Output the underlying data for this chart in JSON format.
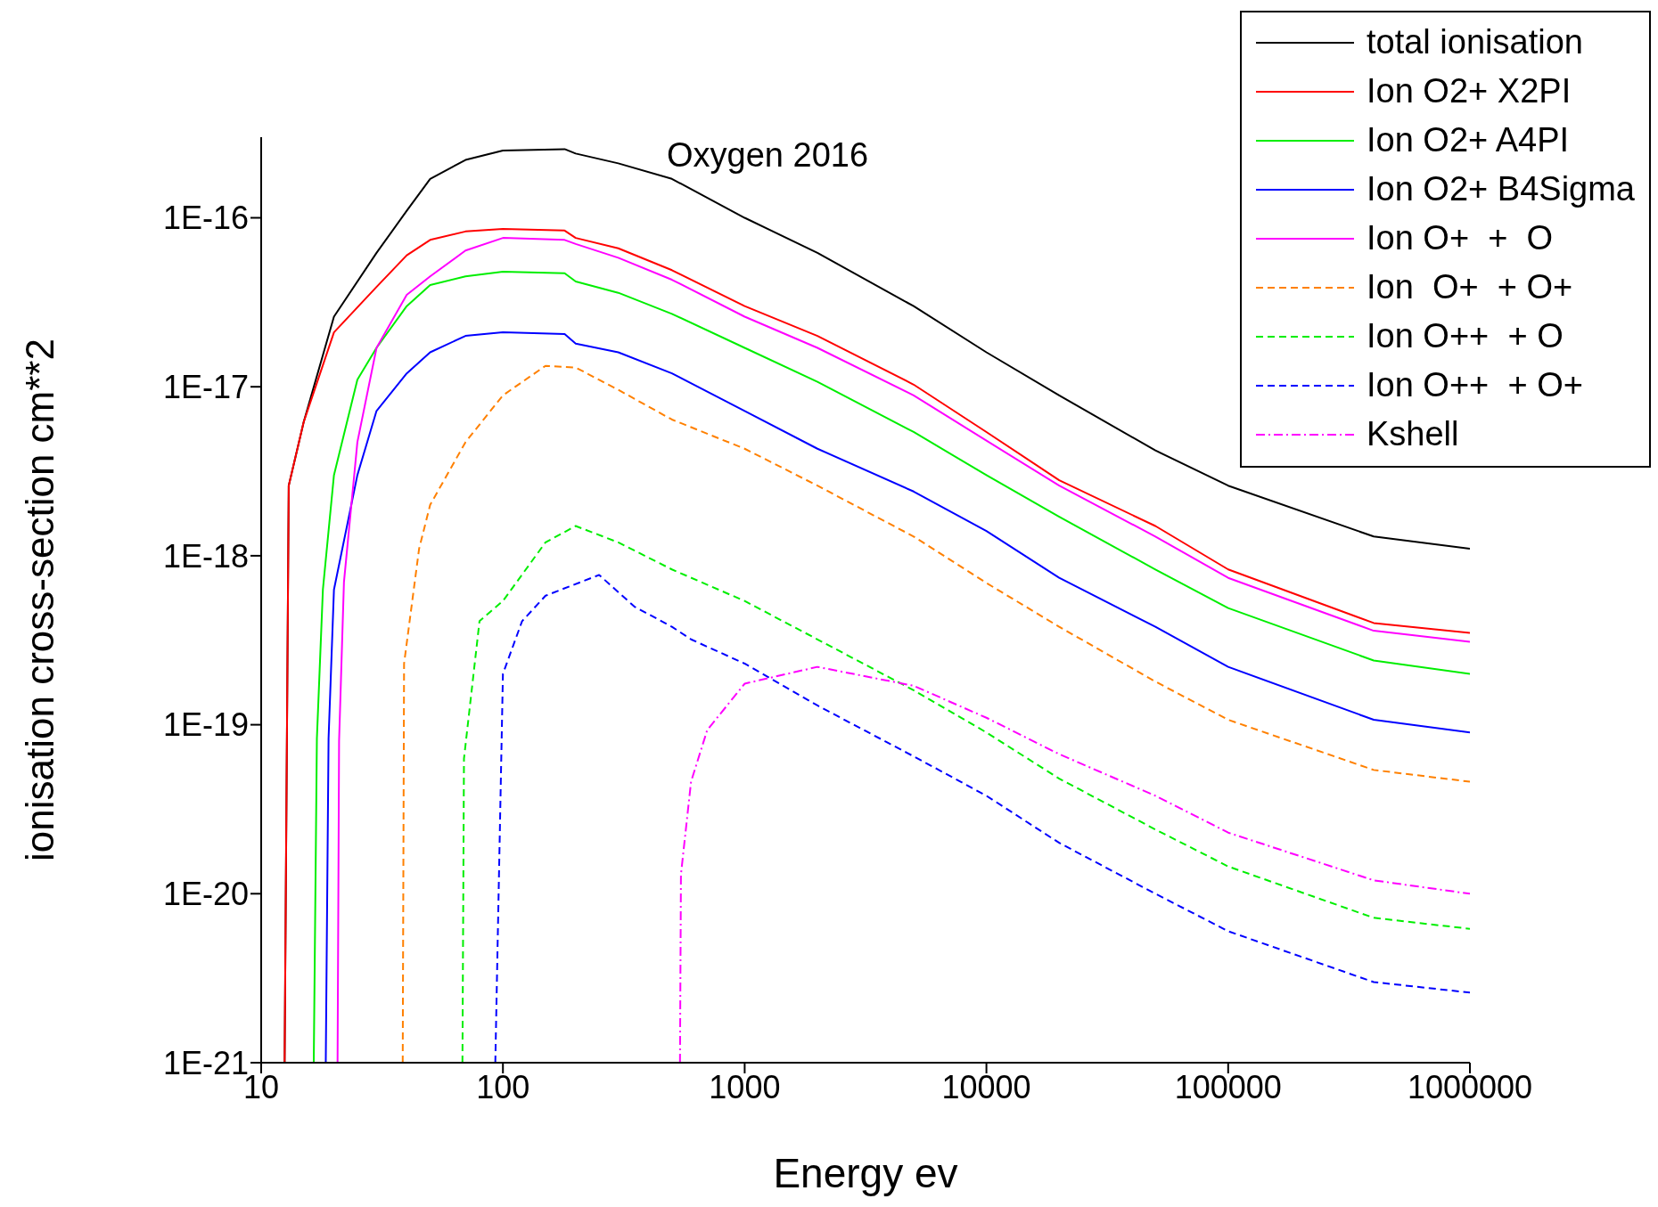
{
  "chart_data": {
    "type": "line",
    "title": "Oxygen 2016",
    "xlabel": "Energy  ev",
    "ylabel": "ionisation cross-section  cm**2",
    "log": "xy",
    "legend": "top right",
    "marker": "none",
    "xlim": [
      10,
      1000000
    ],
    "xticks": [
      10,
      100,
      1000,
      10000,
      100000,
      1000000
    ],
    "ylim": [
      1e-21,
      3e-16
    ],
    "yticks": [
      {
        "value": 1e-21,
        "label": "1E-21"
      },
      {
        "value": 1e-20,
        "label": "1E-20"
      },
      {
        "value": 1e-19,
        "label": "1E-19"
      },
      {
        "value": 1e-18,
        "label": "1E-18"
      },
      {
        "value": 1e-17,
        "label": "1E-17"
      },
      {
        "value": 1e-16,
        "label": "1E-16"
      }
    ],
    "series": [
      {
        "name": "total ionisation",
        "color": "#000000",
        "line_style": "solid",
        "x": [
          12.5,
          13,
          15,
          20,
          30,
          40,
          50,
          70,
          100,
          180,
          200,
          300,
          500,
          1000,
          2000,
          5000,
          10000,
          20000,
          50000,
          100000,
          400000,
          1000000
        ],
        "values": [
          1e-21,
          2.6e-18,
          6.2e-18,
          2.6e-17,
          6.2e-17,
          1.1e-16,
          1.7e-16,
          2.2e-16,
          2.5e-16,
          2.55e-16,
          2.4e-16,
          2.1e-16,
          1.7e-16,
          1e-16,
          6.2e-17,
          3e-17,
          1.6e-17,
          8.9e-18,
          4.2e-18,
          2.6e-18,
          1.3e-18,
          1.1e-18
        ]
      },
      {
        "name": "Ion O2+ X2PI",
        "color": "#ff0000",
        "line_style": "solid",
        "x": [
          12.5,
          13,
          15,
          20,
          30,
          40,
          50,
          70,
          100,
          180,
          200,
          300,
          500,
          1000,
          2000,
          5000,
          10000,
          20000,
          50000,
          100000,
          400000,
          1000000
        ],
        "values": [
          1e-21,
          2.6e-18,
          6.2e-18,
          2.1e-17,
          3.9e-17,
          6e-17,
          7.4e-17,
          8.3e-17,
          8.6e-17,
          8.4e-17,
          7.6e-17,
          6.6e-17,
          4.9e-17,
          3e-17,
          2e-17,
          1.03e-17,
          5.4e-18,
          2.8e-18,
          1.5e-18,
          8.3e-19,
          4e-19,
          3.5e-19
        ]
      },
      {
        "name": "Ion O2+ A4PI",
        "color": "#00ee00",
        "line_style": "solid",
        "x": [
          16.5,
          17,
          18,
          20,
          25,
          30,
          40,
          50,
          70,
          100,
          180,
          200,
          300,
          500,
          1000,
          2000,
          5000,
          10000,
          20000,
          50000,
          100000,
          400000,
          1000000
        ],
        "values": [
          1e-21,
          8.3e-20,
          6.3e-19,
          3e-18,
          1.1e-17,
          1.7e-17,
          3e-17,
          4e-17,
          4.5e-17,
          4.8e-17,
          4.7e-17,
          4.2e-17,
          3.6e-17,
          2.7e-17,
          1.7e-17,
          1.07e-17,
          5.4e-18,
          3e-18,
          1.7e-18,
          8.3e-19,
          4.9e-19,
          2.4e-19,
          2e-19
        ]
      },
      {
        "name": "Ion O2+ B4Sigma",
        "color": "#0000ff",
        "line_style": "solid",
        "x": [
          18.5,
          19,
          20,
          25,
          30,
          40,
          50,
          70,
          100,
          180,
          200,
          300,
          500,
          1000,
          2000,
          5000,
          10000,
          20000,
          50000,
          100000,
          400000,
          1000000
        ],
        "values": [
          1e-21,
          8.3e-20,
          6.3e-19,
          3e-18,
          7.2e-18,
          1.2e-17,
          1.6e-17,
          2e-17,
          2.1e-17,
          2.05e-17,
          1.8e-17,
          1.6e-17,
          1.2e-17,
          7.2e-18,
          4.3e-18,
          2.4e-18,
          1.4e-18,
          7.4e-19,
          3.8e-19,
          2.2e-19,
          1.07e-19,
          9e-20
        ]
      },
      {
        "name": "Ion O+  +  O",
        "color": "#ff00ff",
        "line_style": "solid",
        "x": [
          20.7,
          21,
          22,
          25,
          30,
          40,
          50,
          70,
          100,
          180,
          200,
          300,
          500,
          1000,
          2000,
          5000,
          10000,
          20000,
          50000,
          100000,
          400000,
          1000000
        ],
        "values": [
          1e-21,
          8e-20,
          7e-19,
          4.7e-18,
          1.7e-17,
          3.5e-17,
          4.5e-17,
          6.4e-17,
          7.6e-17,
          7.4e-17,
          7e-17,
          5.8e-17,
          4.3e-17,
          2.6e-17,
          1.7e-17,
          8.9e-18,
          4.8e-18,
          2.6e-18,
          1.3e-18,
          7.4e-19,
          3.6e-19,
          3.1e-19
        ]
      },
      {
        "name": "Ion  O+  + O+",
        "color": "#ff8000",
        "line_style": "dashed",
        "x": [
          38.5,
          39,
          45,
          50,
          70,
          100,
          150,
          200,
          300,
          500,
          1000,
          2000,
          5000,
          10000,
          20000,
          50000,
          100000,
          400000,
          1000000
        ],
        "values": [
          1e-21,
          2.3e-19,
          1.1e-18,
          2e-18,
          4.7e-18,
          8.9e-18,
          1.33e-17,
          1.3e-17,
          9.6e-18,
          6.4e-18,
          4.3e-18,
          2.6e-18,
          1.3e-18,
          6.9e-19,
          3.8e-19,
          1.8e-19,
          1.07e-19,
          5.4e-20,
          4.6e-20
        ]
      },
      {
        "name": "Ion O++  + O",
        "color": "#00ee00",
        "line_style": "dashed",
        "x": [
          68,
          69,
          80,
          100,
          150,
          200,
          300,
          500,
          1000,
          2000,
          5000,
          10000,
          20000,
          50000,
          100000,
          400000,
          1000000
        ],
        "values": [
          1e-21,
          6.3e-20,
          4.1e-19,
          5.4e-19,
          1.2e-18,
          1.5e-18,
          1.2e-18,
          8.3e-19,
          5.4e-19,
          3.2e-19,
          1.6e-19,
          9e-20,
          4.8e-20,
          2.4e-20,
          1.45e-20,
          7.2e-21,
          6.2e-21
        ]
      },
      {
        "name": "Ion O++  + O+",
        "color": "#0000ff",
        "line_style": "dashed",
        "x": [
          93,
          100,
          120,
          150,
          250,
          350,
          500,
          600,
          1000,
          2000,
          5000,
          10000,
          20000,
          50000,
          100000,
          400000,
          1000000
        ],
        "values": [
          1e-21,
          2e-19,
          4.1e-19,
          5.8e-19,
          7.7e-19,
          5e-19,
          3.8e-19,
          3.2e-19,
          2.3e-19,
          1.3e-19,
          6.5e-20,
          3.8e-20,
          2e-20,
          1e-20,
          6e-21,
          3e-21,
          2.6e-21
        ]
      },
      {
        "name": "Kshell",
        "color": "#ff00ff",
        "line_style": "dashdot",
        "x": [
          540,
          545,
          600,
          700,
          1000,
          2000,
          5000,
          10000,
          20000,
          50000,
          100000,
          400000,
          1000000
        ],
        "values": [
          1e-21,
          1.3e-20,
          4.6e-20,
          9.3e-20,
          1.75e-19,
          2.2e-19,
          1.7e-19,
          1.1e-19,
          6.7e-20,
          3.8e-20,
          2.3e-20,
          1.2e-20,
          1e-20
        ]
      }
    ]
  }
}
